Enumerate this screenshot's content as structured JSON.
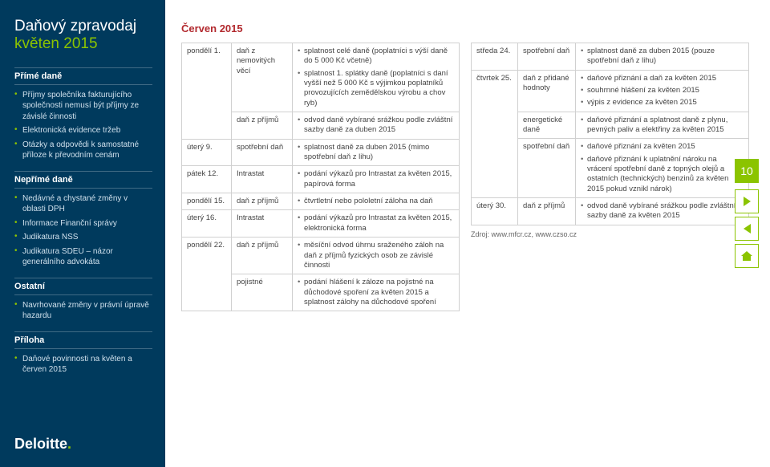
{
  "colors": {
    "sidebar_bg": "#003a5d",
    "accent_green": "#8bc400",
    "period_red": "#b2292e",
    "border_gray": "#d0d0d0",
    "text": "#444444"
  },
  "page_number": "10",
  "sidebar": {
    "title": "Daňový zpravodaj",
    "subtitle": "květen 2015",
    "sections": [
      {
        "label": "Přímé daně",
        "items": [
          "Příjmy společníka fakturujícího společnosti nemusí být příjmy ze závislé činnosti",
          "Elektronická evidence tržeb",
          "Otázky a odpovědi k samostatné příloze k převodním cenám"
        ]
      },
      {
        "label": "Nepřímé daně",
        "items": [
          "Nedávné a chystané změny v oblasti DPH",
          "Informace Finanční správy",
          "Judikatura NSS",
          "Judikatura SDEU – názor generálního advokáta"
        ]
      },
      {
        "label": "Ostatní",
        "items": [
          "Navrhované změny v právní úpravě hazardu"
        ]
      },
      {
        "label": "Příloha",
        "items": [
          "Daňové povinnosti na květen a červen 2015"
        ]
      }
    ],
    "logo_text": "Deloitte",
    "logo_dot": "."
  },
  "main": {
    "period_label": "Červen 2015",
    "source_label": "Zdroj: www.mfcr.cz, www.czso.cz",
    "table_left": [
      {
        "day": "pondělí 1.",
        "tax": "daň z nemovitých věcí",
        "items": [
          "splatnost celé daně (poplatníci s výší daně do 5 000 Kč včetně)",
          "splatnost 1. splátky daně (poplatníci s daní vyšší než 5 000 Kč s výjimkou poplatníků provozujících zemědělskou výrobu a chov ryb)"
        ]
      },
      {
        "day": "",
        "tax": "daň z příjmů",
        "items": [
          "odvod daně vybírané srážkou podle zvláštní sazby daně za duben 2015"
        ]
      },
      {
        "day": "úterý 9.",
        "tax": "spotřební daň",
        "items": [
          "splatnost daně za duben 2015 (mimo spotřební daň z lihu)"
        ]
      },
      {
        "day": "pátek 12.",
        "tax": "Intrastat",
        "items": [
          "podání výkazů pro Intrastat za květen 2015, papírová forma"
        ]
      },
      {
        "day": "pondělí 15.",
        "tax": "daň z příjmů",
        "items": [
          "čtvrtletní nebo pololetní záloha na daň"
        ]
      },
      {
        "day": "úterý 16.",
        "tax": "Intrastat",
        "items": [
          "podání výkazů pro Intrastat za květen 2015, elektronická forma"
        ]
      },
      {
        "day": "pondělí 22.",
        "tax": "daň z příjmů",
        "items": [
          "měsíční odvod úhrnu sraženého záloh na daň z příjmů fyzických osob ze závislé činnosti"
        ]
      },
      {
        "day": "",
        "tax": "pojistné",
        "items": [
          "podání hlášení k záloze na pojistné na důchodové spoření za květen 2015 a splatnost zálohy na důchodové spoření"
        ]
      }
    ],
    "table_right": [
      {
        "day": "středa 24.",
        "tax": "spotřební daň",
        "items": [
          "splatnost daně za duben 2015 (pouze spotřební daň z lihu)"
        ]
      },
      {
        "day": "čtvrtek 25.",
        "tax": "daň z přidané hodnoty",
        "items": [
          "daňové přiznání a daň za květen 2015",
          "souhrnné hlášení za květen 2015",
          "výpis z evidence za květen 2015"
        ]
      },
      {
        "day": "",
        "tax": "energetické daně",
        "items": [
          "daňové přiznání a splatnost daně z plynu, pevných paliv a elektřiny za květen 2015"
        ]
      },
      {
        "day": "",
        "tax": "spotřební daň",
        "items": [
          "daňové přiznání za květen 2015",
          "daňové přiznání k uplatnění nároku na vrácení spotřební daně z topných olejů a ostatních (technických) benzinů za květen 2015 pokud vznikl nárok)"
        ]
      },
      {
        "day": "úterý 30.",
        "tax": "daň z příjmů",
        "items": [
          "odvod daně vybírané srážkou podle zvláštní sazby daně za květen 2015"
        ]
      }
    ]
  }
}
